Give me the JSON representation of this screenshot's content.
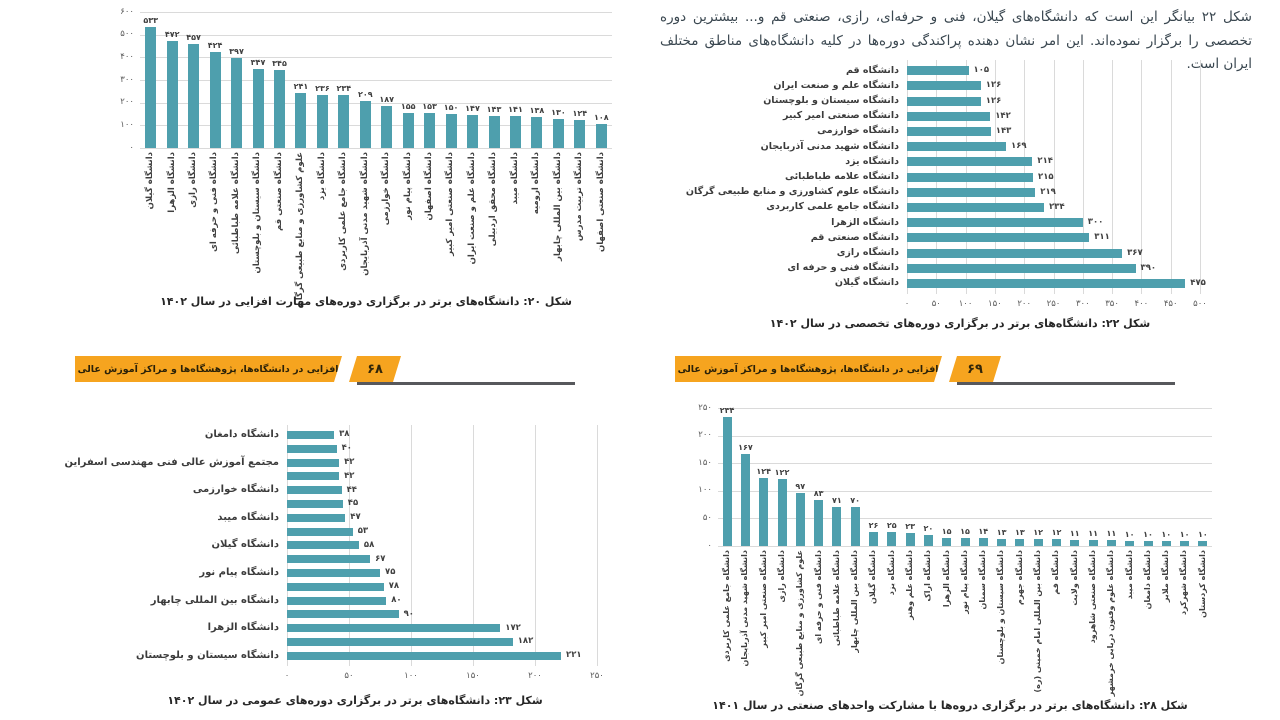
{
  "banner": {
    "title": "مهارت‌افزایی در دانشگاه‌ها، پژوهشگاه‌ها و مراکز آموزش عالی کشور",
    "left_page_number": "۶۸",
    "right_page_number": "۶۹"
  },
  "paragraph": "شکل ۲۲ بیانگر این است که دانشگاه‌های گیلان، فنی و حرفه‌ای، رازی، صنعتی قم و... بیشترین دوره تخصصی را برگزار نموده‌اند. این امر نشان دهنده پراکندگی دوره‌ها در کلیه دانشگاه‌های مناطق مختلف ایران است.",
  "colors": {
    "bar": "#4E9FAD",
    "banner": "#F6A41F",
    "banner_line": "#57585C"
  },
  "chart_data": [
    {
      "type": "bar",
      "orientation": "vertical",
      "title": "شکل ۲۰: دانشگاه‌های برتر در برگزاری دوره‌های مهارت افزایی در سال ۱۴۰۲",
      "categories": [
        "دانشگاه گیلان",
        "دانشگاه الزهرا",
        "دانشگاه رازی",
        "دانشگاه فنی و حرفه ای",
        "دانشگاه علامه طباطبائی",
        "دانشگاه سیستان و بلوچستان",
        "دانشگاه صنعتی قم",
        "علوم کشاورزی و منابع طبیعی گرگان",
        "دانشگاه یزد",
        "دانشگاه جامع علمی کاربردی",
        "دانشگاه شهید مدنی آذربایجان",
        "دانشگاه خوارزمی",
        "دانشگاه پیام نور",
        "دانشگاه اصفهان",
        "دانشگاه صنعتی امیر کبیر",
        "دانشگاه علم و صنعت ایران",
        "دانشگاه محقق اردبیلی",
        "دانشگاه میبد",
        "دانشگاه ارومیه",
        "دانشگاه بین المللی چابهار",
        "دانشگاه تربیت مدرس",
        "دانشگاه صنعتی اصفهان"
      ],
      "values": [
        533,
        472,
        457,
        424,
        397,
        347,
        345,
        241,
        236,
        234,
        209,
        187,
        155,
        153,
        150,
        147,
        143,
        141,
        138,
        130,
        124,
        108
      ],
      "value_labels": [
        "۵۳۳",
        "۴۷۲",
        "۴۵۷",
        "۴۲۴",
        "۳۹۷",
        "۳۴۷",
        "۳۴۵",
        "۲۴۱",
        "۲۳۶",
        "۲۳۴",
        "۲۰۹",
        "۱۸۷",
        "۱۵۵",
        "۱۵۳",
        "۱۵۰",
        "۱۴۷",
        "۱۴۳",
        "۱۴۱",
        "۱۳۸",
        "۱۳۰",
        "۱۲۴",
        "۱۰۸"
      ],
      "y_ticks": [
        "۶۰۰",
        "۵۰۰",
        "۴۰۰",
        "۳۰۰",
        "۲۰۰",
        "۱۰۰",
        "۰"
      ],
      "ylim": [
        0,
        600
      ],
      "grid": true,
      "legend": false
    },
    {
      "type": "bar",
      "orientation": "horizontal",
      "title": "شکل ۲۲: دانشگاه‌های برتر در برگزاری دوره‌های تخصصی در سال ۱۴۰۲",
      "categories": [
        "دانشگاه قم",
        "دانشگاه علم و صنعت ایران",
        "دانشگاه سیستان و بلوچستان",
        "دانشگاه صنعتی امیر کبیر",
        "دانشگاه خوارزمی",
        "دانشگاه شهید مدنی آذربایجان",
        "دانشگاه یزد",
        "دانشگاه علامه طباطبائی",
        "دانشگاه علوم کشاورزی و منابع طبیعی گرگان",
        "دانشگاه جامع علمی کاربردی",
        "دانشگاه الزهرا",
        "دانشگاه صنعتی قم",
        "دانشگاه رازی",
        "دانشگاه فنی و حرفه ای",
        "دانشگاه گیلان"
      ],
      "values": [
        105,
        126,
        126,
        142,
        143,
        169,
        214,
        215,
        219,
        234,
        300,
        311,
        367,
        390,
        475
      ],
      "value_labels": [
        "۱۰۵",
        "۱۲۶",
        "۱۲۶",
        "۱۴۲",
        "۱۴۳",
        "۱۶۹",
        "۲۱۴",
        "۲۱۵",
        "۲۱۹",
        "۲۳۴",
        "۳۰۰",
        "۳۱۱",
        "۳۶۷",
        "۳۹۰",
        "۴۷۵"
      ],
      "x_ticks": [
        "۰",
        "۵۰",
        "۱۰۰",
        "۱۵۰",
        "۲۰۰",
        "۲۵۰",
        "۳۰۰",
        "۳۵۰",
        "۴۰۰",
        "۴۵۰",
        "۵۰۰"
      ],
      "xlim": [
        0,
        500
      ],
      "grid": true,
      "legend": false
    },
    {
      "type": "bar",
      "orientation": "horizontal",
      "title": "شکل ۲۳: دانشگاه‌های برتر در برگزاری دوره‌های عمومی در سال ۱۴۰۲",
      "categories": [
        "دانشگاه دامغان",
        "",
        "مجتمع آموزش عالی فنی مهندسی اسفراین",
        "",
        "دانشگاه خوارزمی",
        "",
        "دانشگاه میبد",
        "",
        "دانشگاه گیلان",
        "",
        "دانشگاه پیام نور",
        "",
        "دانشگاه بین المللی چابهار",
        "",
        "دانشگاه الزهرا",
        "",
        "دانشگاه سیستان و بلوچستان"
      ],
      "values": [
        38,
        40,
        42,
        42,
        44,
        45,
        47,
        53,
        58,
        67,
        75,
        78,
        80,
        90,
        172,
        182,
        221
      ],
      "value_labels": [
        "۳۸",
        "۴۰",
        "۴۲",
        "۴۲",
        "۴۴",
        "۴۵",
        "۴۷",
        "۵۳",
        "۵۸",
        "۶۷",
        "۷۵",
        "۷۸",
        "۸۰",
        "۹۰",
        "۱۷۲",
        "۱۸۲",
        "۲۲۱"
      ],
      "x_ticks": [
        "۰",
        "۵۰",
        "۱۰۰",
        "۱۵۰",
        "۲۰۰",
        "۲۵۰"
      ],
      "xlim": [
        0,
        250
      ],
      "grid": true,
      "legend": false
    },
    {
      "type": "bar",
      "orientation": "vertical",
      "title": "شکل ۲۸: دانشگاه‌های برتر در برگزاری دروه‌ها با مشارکت واحدهای صنعتی در سال ۱۴۰۱",
      "categories": [
        "دانشگاه جامع علمی کاربردی",
        "دانشگاه شهید مدنی آذربایجان",
        "دانشگاه صنعتی امیر کبیر",
        "دانشگاه رازی",
        "علوم کشاورزی و منابع طبیعی گرگان",
        "دانشگاه فنی و حرفه ای",
        "دانشگاه علامه طباطبائی",
        "دانشگاه بین المللی چابهار",
        "دانشگاه گیلان",
        "دانشگاه یزد",
        "دانشگاه علم وهنر",
        "دانشگاه اراک",
        "دانشگاه الزهرا",
        "دانشگاه پیام نور",
        "دانشگاه سمنان",
        "دانشگاه سیستان و بلوچستان",
        "دانشگاه جهرم",
        "دانشگاه بین المللی امام خمینی (ره)",
        "دانشگاه قم",
        "دانشگاه ولایت",
        "دانشگاه صنعتی شاهرود",
        "دانشگاه علوم وفنون دریایی خرمشهر",
        "دانشگاه میبد",
        "دانشگاه دامغان",
        "دانشگاه ملایر",
        "دانشگاه شهرکرد",
        "دانشگاه کردستان"
      ],
      "values": [
        234,
        167,
        124,
        122,
        97,
        83,
        71,
        70,
        26,
        25,
        23,
        20,
        15,
        15,
        14,
        13,
        13,
        12,
        12,
        11,
        11,
        11,
        10,
        10,
        10,
        10,
        10
      ],
      "value_labels": [
        "۲۳۴",
        "۱۶۷",
        "۱۲۴",
        "۱۲۲",
        "۹۷",
        "۸۳",
        "۷۱",
        "۷۰",
        "۲۶",
        "۲۵",
        "۲۳",
        "۲۰",
        "۱۵",
        "۱۵",
        "۱۴",
        "۱۳",
        "۱۳",
        "۱۲",
        "۱۲",
        "۱۱",
        "۱۱",
        "۱۱",
        "۱۰",
        "۱۰",
        "۱۰",
        "۱۰",
        "۱۰"
      ],
      "y_ticks": [
        "۲۵۰",
        "۲۰۰",
        "۱۵۰",
        "۱۰۰",
        "۵۰",
        "۰"
      ],
      "ylim": [
        0,
        250
      ],
      "grid": true,
      "legend": false
    }
  ]
}
